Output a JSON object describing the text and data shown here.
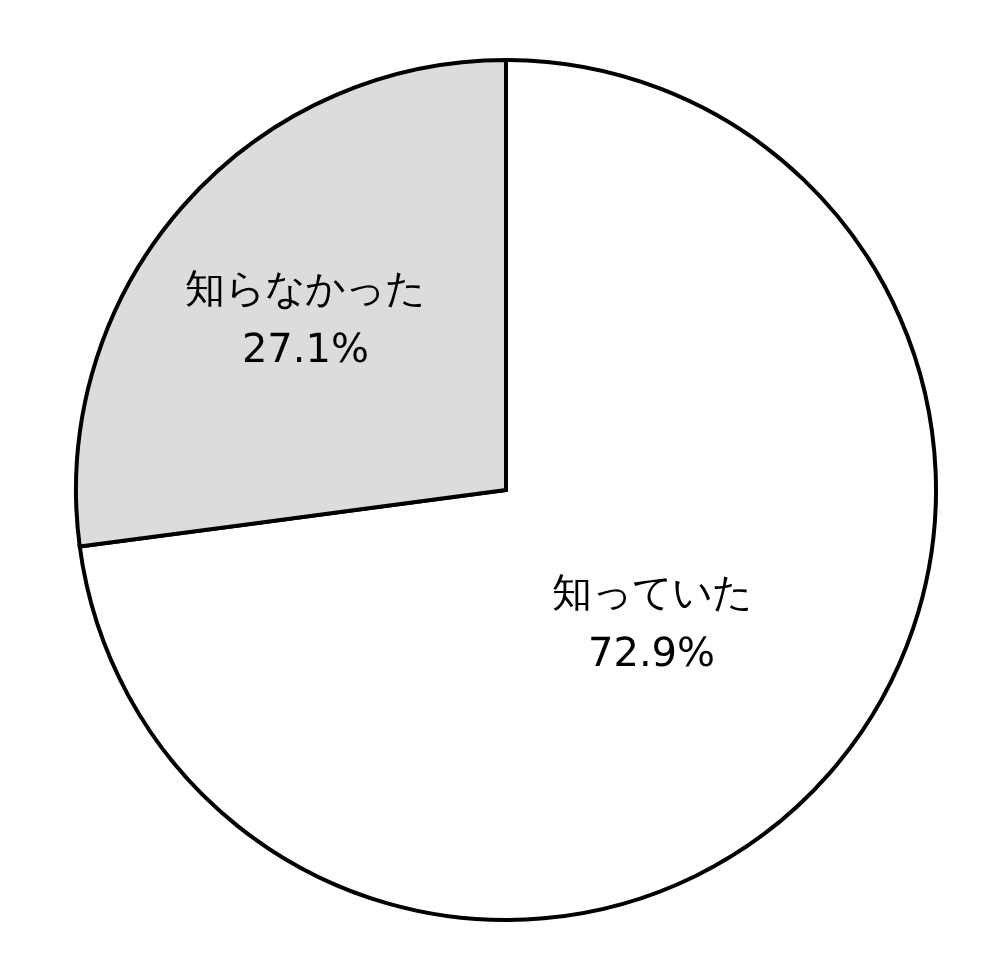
{
  "chart_data": {
    "type": "pie",
    "categories": [
      "知っていた",
      "知らなかった"
    ],
    "values": [
      72.9,
      27.1
    ],
    "colors": [
      "#ffffff",
      "#dcdcdc"
    ],
    "value_labels": [
      "72.9%",
      "27.1%"
    ]
  }
}
